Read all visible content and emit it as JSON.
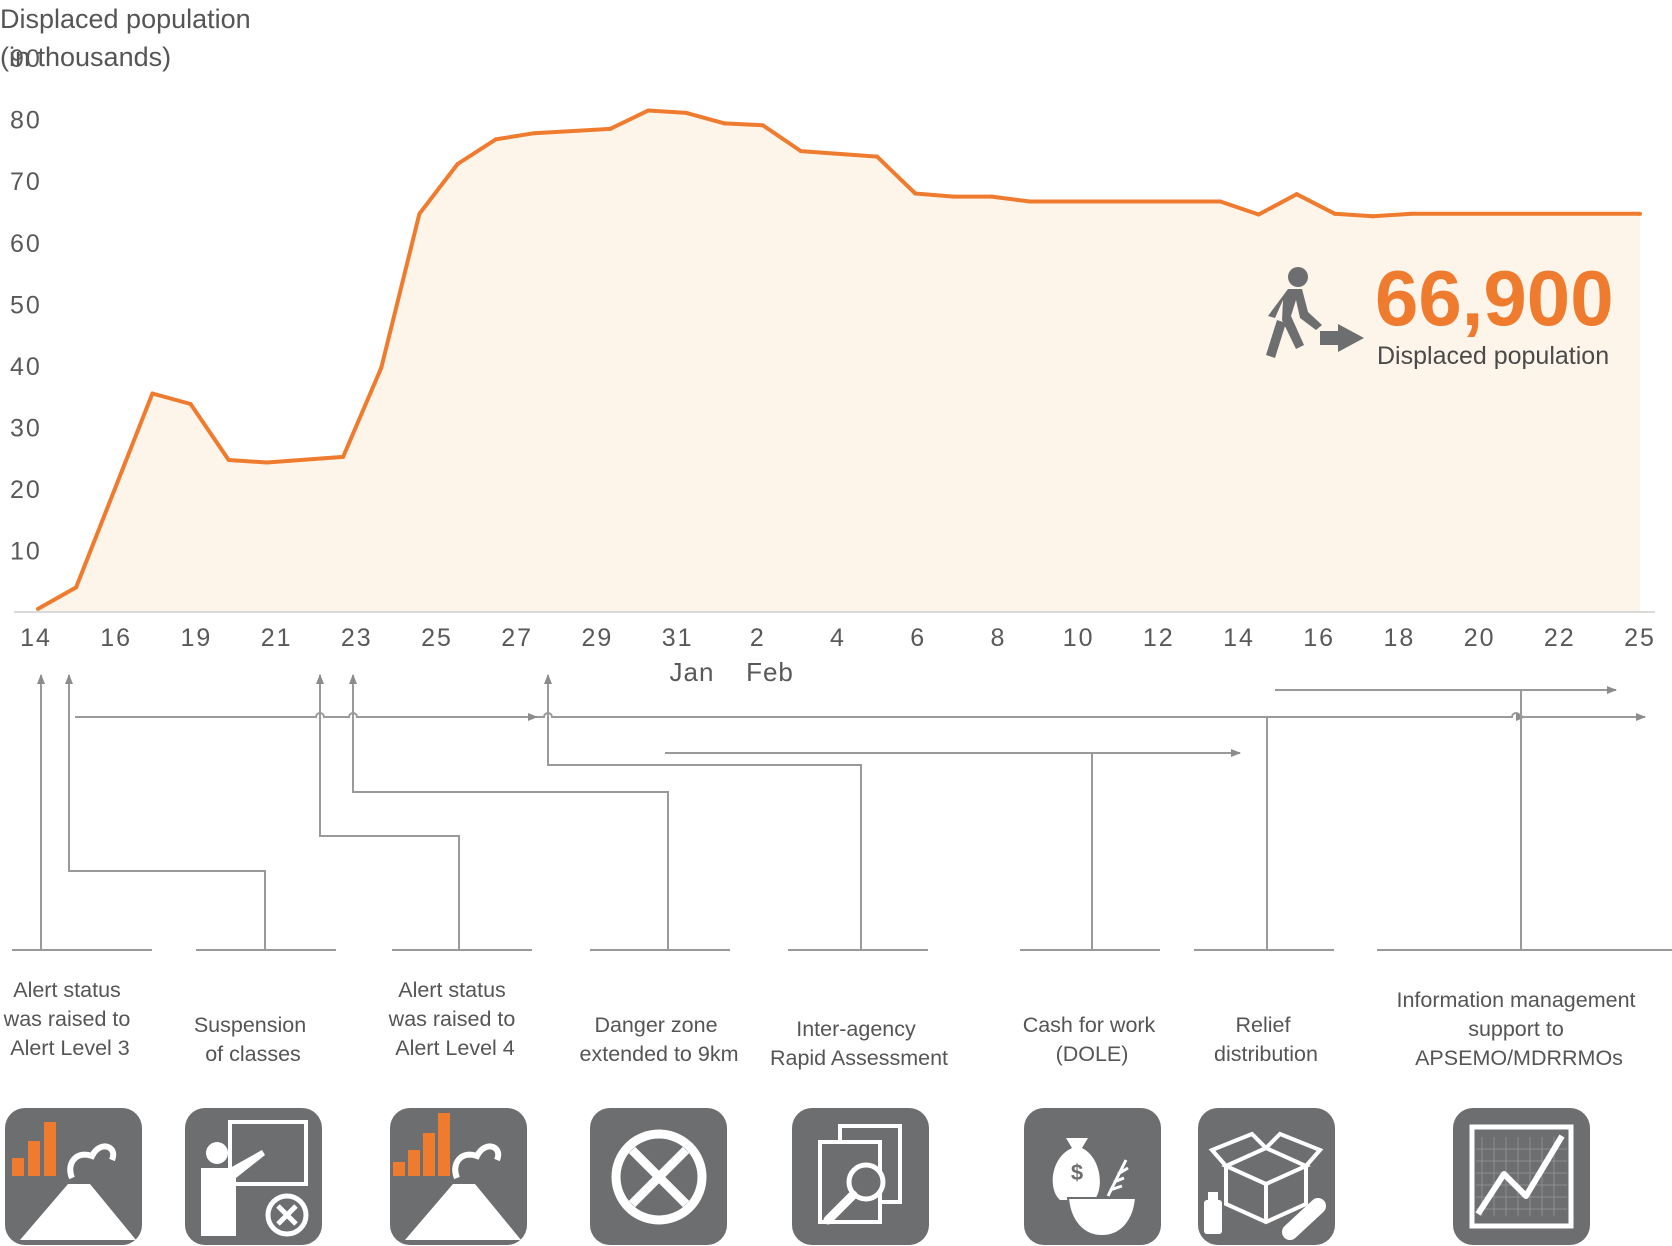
{
  "chart_data": {
    "type": "area",
    "ylabel_lines": [
      "Displaced population",
      "(in thousands)"
    ],
    "yticks": [
      10,
      20,
      30,
      40,
      50,
      60,
      70,
      80,
      90
    ],
    "ylim": [
      0,
      91
    ],
    "x_tick_labels": [
      "14",
      "16",
      "19",
      "21",
      "23",
      "25",
      "27",
      "29",
      "31",
      "2",
      "4",
      "6",
      "8",
      "10",
      "12",
      "14",
      "16",
      "18",
      "20",
      "22",
      "25"
    ],
    "month_labels": [
      "Jan",
      "Feb"
    ],
    "series": [
      {
        "values": [
          {
            "x": "2018-01-14",
            "y": 0.5
          },
          {
            "x": "2018-01-15",
            "y": 4.0
          },
          {
            "x": "2018-01-17",
            "y": 35.5
          },
          {
            "x": "2018-01-18",
            "y": 33.8
          },
          {
            "x": "2018-01-19",
            "y": 24.7
          },
          {
            "x": "2018-01-20",
            "y": 24.3
          },
          {
            "x": "2018-01-22",
            "y": 25.2
          },
          {
            "x": "2018-01-23",
            "y": 39.7
          },
          {
            "x": "2018-01-24",
            "y": 64.7
          },
          {
            "x": "2018-01-25",
            "y": 72.8
          },
          {
            "x": "2018-01-26",
            "y": 76.8
          },
          {
            "x": "2018-01-27",
            "y": 77.8
          },
          {
            "x": "2018-01-29",
            "y": 78.5
          },
          {
            "x": "2018-01-30",
            "y": 81.5
          },
          {
            "x": "2018-01-31",
            "y": 81.1
          },
          {
            "x": "2018-02-01",
            "y": 79.4
          },
          {
            "x": "2018-02-02",
            "y": 79.1
          },
          {
            "x": "2018-02-03",
            "y": 74.9
          },
          {
            "x": "2018-02-05",
            "y": 74.0
          },
          {
            "x": "2018-02-06",
            "y": 68.0
          },
          {
            "x": "2018-02-07",
            "y": 67.5
          },
          {
            "x": "2018-02-08",
            "y": 67.5
          },
          {
            "x": "2018-02-09",
            "y": 66.7
          },
          {
            "x": "2018-02-14",
            "y": 66.7
          },
          {
            "x": "2018-02-15",
            "y": 64.6
          },
          {
            "x": "2018-02-16",
            "y": 67.9
          },
          {
            "x": "2018-02-17",
            "y": 64.7
          },
          {
            "x": "2018-02-18",
            "y": 64.3
          },
          {
            "x": "2018-02-19",
            "y": 64.7
          },
          {
            "x": "2018-02-25",
            "y": 64.7
          }
        ]
      }
    ],
    "line_color": "#ef7b2f",
    "fill_color": "#fdf4ea",
    "highlight": {
      "value": "66,900",
      "caption": "Displaced population"
    },
    "events": [
      {
        "label": "Alert status\nwas raised to\nAlert Level 3",
        "icon": "volcano-alert-3-icon"
      },
      {
        "label": "Suspension\nof classes",
        "icon": "class-suspension-icon"
      },
      {
        "label": "Alert status\nwas  raised to\nAlert Level 4",
        "icon": "volcano-alert-4-icon"
      },
      {
        "label": "Danger zone\nextended to 9km",
        "icon": "danger-zone-icon"
      },
      {
        "label": "Inter-agency\nRapid Assessment",
        "icon": "rapid-assessment-icon"
      },
      {
        "label": "Cash for work\n(DOLE)",
        "icon": "cash-for-work-icon"
      },
      {
        "label": "Relief\ndistribution",
        "icon": "relief-distribution-icon"
      },
      {
        "label": "Information management\nsupport to\nAPSEMO/MDRRMOs",
        "icon": "information-management-icon"
      }
    ],
    "icon_bg_color": "#6d6e70",
    "connector_color": "#999999"
  }
}
